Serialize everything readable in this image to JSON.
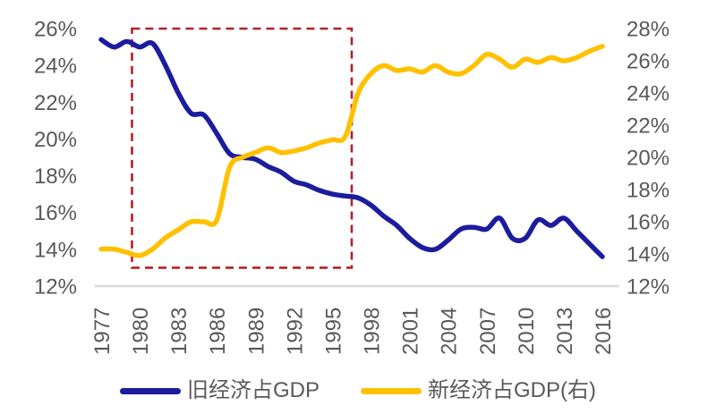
{
  "chart_data": {
    "type": "line",
    "title": "",
    "grid": false,
    "legend_position": "bottom",
    "x_label": "",
    "x": [
      1977,
      1978,
      1979,
      1980,
      1981,
      1982,
      1983,
      1984,
      1985,
      1986,
      1987,
      1988,
      1989,
      1990,
      1991,
      1992,
      1993,
      1994,
      1995,
      1996,
      1997,
      1998,
      1999,
      2000,
      2001,
      2002,
      2003,
      2004,
      2005,
      2006,
      2007,
      2008,
      2009,
      2010,
      2011,
      2012,
      2013,
      2014,
      2015,
      2016
    ],
    "x_tick_labels": [
      "1977",
      "1980",
      "1983",
      "1986",
      "1989",
      "1992",
      "1995",
      "1998",
      "2001",
      "2004",
      "2007",
      "2010",
      "2013",
      "2016"
    ],
    "left_axis": {
      "min": 12,
      "max": 26,
      "unit": "%",
      "tick_values": [
        26,
        24,
        22,
        20,
        18,
        16,
        14,
        12
      ],
      "tick_labels": [
        "26%",
        "24%",
        "22%",
        "20%",
        "18%",
        "16%",
        "14%",
        "12%"
      ]
    },
    "right_axis": {
      "min": 12,
      "max": 28,
      "unit": "%",
      "tick_values": [
        28,
        26,
        24,
        22,
        20,
        18,
        16,
        14,
        12
      ],
      "tick_labels": [
        "28%",
        "26%",
        "24%",
        "22%",
        "20%",
        "18%",
        "16%",
        "14%",
        "12%"
      ]
    },
    "series": [
      {
        "name": "旧经济占GDP",
        "axis": "left",
        "color": "#1C1C9E",
        "values": [
          25.4,
          25.0,
          25.3,
          25.0,
          25.2,
          24.0,
          22.5,
          21.4,
          21.3,
          20.3,
          19.2,
          19.0,
          18.9,
          18.5,
          18.2,
          17.7,
          17.5,
          17.2,
          17.0,
          16.9,
          16.8,
          16.4,
          15.8,
          15.3,
          14.6,
          14.1,
          14.0,
          14.5,
          15.1,
          15.2,
          15.1,
          15.7,
          14.6,
          14.6,
          15.6,
          15.3,
          15.7,
          15.0,
          14.3,
          13.6
        ]
      },
      {
        "name": "新经济占GDP(右)",
        "axis": "right",
        "color": "#FFC000",
        "values": [
          14.3,
          14.3,
          14.1,
          13.9,
          14.3,
          15.0,
          15.5,
          16.0,
          16.0,
          16.1,
          19.4,
          20.0,
          20.3,
          20.6,
          20.3,
          20.4,
          20.6,
          20.9,
          21.1,
          21.3,
          24.0,
          25.2,
          25.7,
          25.4,
          25.5,
          25.3,
          25.7,
          25.3,
          25.2,
          25.7,
          26.4,
          26.1,
          25.6,
          26.1,
          25.9,
          26.2,
          26.0,
          26.2,
          26.6,
          26.9
        ]
      }
    ],
    "annotation_box": {
      "shape": "dashed-rectangle",
      "color": "#B22222",
      "x_start_year": 1979.4,
      "x_end_year": 1996.5,
      "top_value_left_axis": 26.0,
      "bottom_value_left_axis": 13.0
    },
    "baseline_color": "#D9D9D9",
    "tick_text_color": "#595959"
  }
}
